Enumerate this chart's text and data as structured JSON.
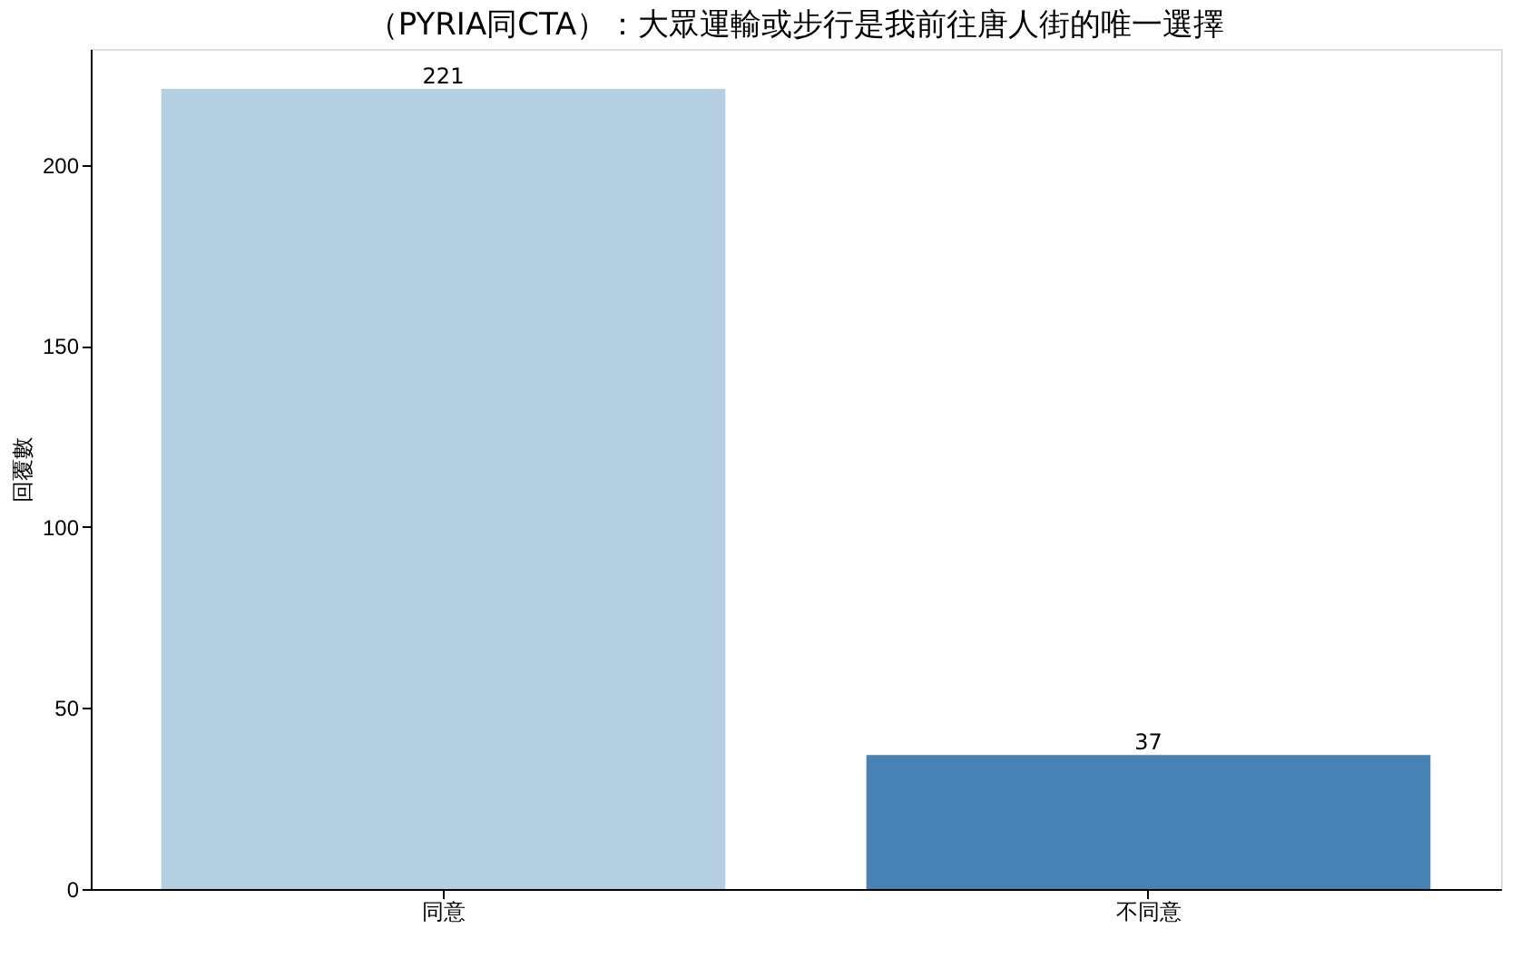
{
  "chart_data": {
    "type": "bar",
    "title": "（PYRIA同CTA）：大眾運輸或步行是我前往唐人街的唯一選擇",
    "ylabel": "回覆數",
    "categories": [
      "同意",
      "不同意"
    ],
    "values": [
      221,
      37
    ],
    "colors": [
      "#b3cfe1",
      "#4682b4"
    ],
    "data_labels": true,
    "ylim": [
      0,
      232
    ],
    "yticks": [
      0,
      50,
      100,
      150,
      200
    ],
    "grid": false,
    "legend": false
  }
}
